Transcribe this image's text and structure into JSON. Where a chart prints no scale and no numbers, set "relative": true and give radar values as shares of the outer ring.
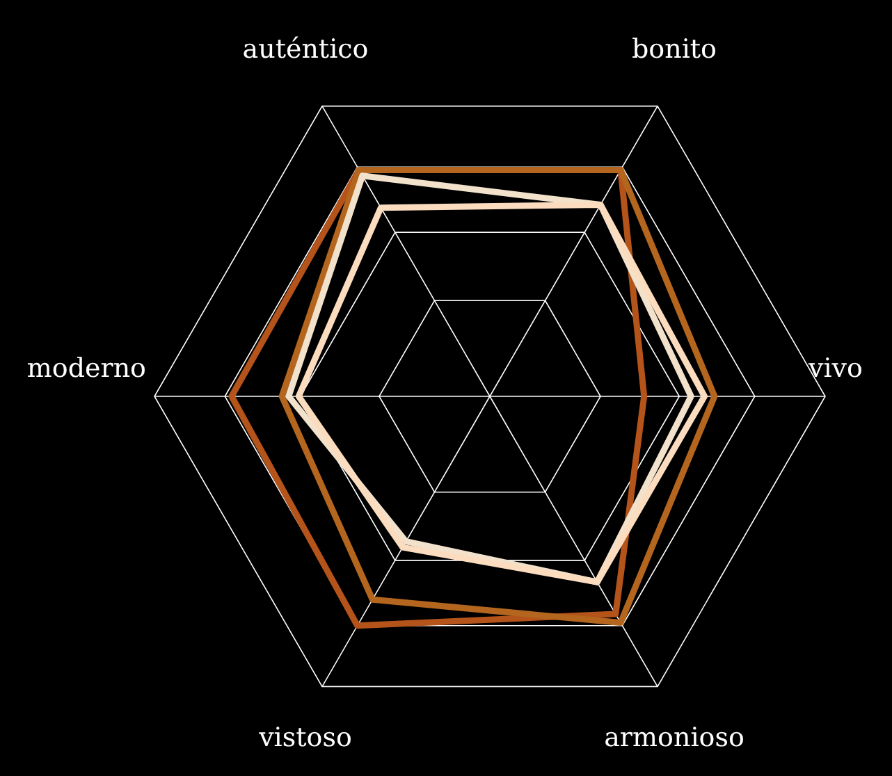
{
  "chart_data": {
    "type": "radar",
    "relative": true,
    "categories": [
      "bonito",
      "vivo",
      "armonioso",
      "vistoso",
      "moderno",
      "auténtico"
    ],
    "series": [
      {
        "color": "#b4531a",
        "values": [
          0.78,
          0.46,
          0.75,
          0.79,
          0.77,
          0.78
        ]
      },
      {
        "color": "#b5661e",
        "values": [
          0.78,
          0.67,
          0.78,
          0.7,
          0.62,
          0.78
        ]
      },
      {
        "color": "#f2e2cc",
        "values": [
          0.66,
          0.6,
          0.64,
          0.5,
          0.6,
          0.76
        ]
      },
      {
        "color": "#fcdcbf",
        "values": [
          0.66,
          0.64,
          0.64,
          0.52,
          0.57,
          0.65
        ]
      }
    ]
  }
}
